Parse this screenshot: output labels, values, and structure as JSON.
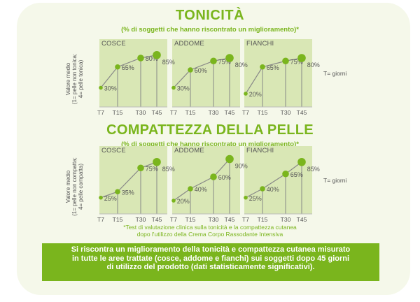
{
  "header": {
    "title1": "TONICITÀ",
    "subtitle1": "(% di soggetti che hanno riscontrato un miglioramento)*",
    "title2": "COMPATTEZZA DELLA PELLE",
    "subtitle2": "(% di soggetti che hanno riscontrato un miglioramento)*"
  },
  "ylabel1": [
    "Valore medio",
    "(1= pelle non tonica;",
    "4= pelle tonica)"
  ],
  "ylabel2": [
    "Valore medio",
    "(1= pelle non compatta;",
    "4= pelle compatta)"
  ],
  "time_note": "T= giorni",
  "footnote_lines": [
    "*Test di valutazione clinica sulla tonicità e la compattezza cutanea",
    "dopo l'utilizzo della Crema Corpo Rassodante Intensiva"
  ],
  "banner_lines": [
    "Si riscontra un miglioramento della tonicità e compattezza cutanea misurato",
    "in tutte le aree trattate (cosce, addome e fianchi) sui soggetti dopo 45 giorni",
    "di utilizzo del prodotto (dati statisticamente significativi)."
  ],
  "colors": {
    "accent": "#7ab51d",
    "panel": "#d9e7b5",
    "line": "#888888"
  },
  "chart_data": [
    {
      "type": "line",
      "title": "COSCE",
      "x": [
        "T7",
        "T15",
        "T30",
        "T45"
      ],
      "values": [
        30,
        65,
        80,
        85
      ],
      "labels": [
        "30%",
        "65%",
        "80%",
        "85%"
      ]
    },
    {
      "type": "line",
      "title": "ADDOME",
      "x": [
        "T7",
        "T15",
        "T30",
        "T45"
      ],
      "values": [
        30,
        60,
        75,
        80
      ],
      "labels": [
        "30%",
        "60%",
        "75%",
        "80%"
      ]
    },
    {
      "type": "line",
      "title": "FIANCHI",
      "x": [
        "T7",
        "T15",
        "T30",
        "T45"
      ],
      "values": [
        20,
        65,
        75,
        80
      ],
      "labels": [
        "20%",
        "65%",
        "75%",
        "80%"
      ]
    },
    {
      "type": "line",
      "title": "COSCE",
      "x": [
        "T7",
        "T15",
        "T30",
        "T45"
      ],
      "values": [
        25,
        35,
        75,
        85
      ],
      "labels": [
        "25%",
        "35%",
        "75%",
        "85%"
      ]
    },
    {
      "type": "line",
      "title": "ADDOME",
      "x": [
        "T7",
        "T15",
        "T30",
        "T45"
      ],
      "values": [
        20,
        40,
        60,
        90
      ],
      "labels": [
        "20%",
        "40%",
        "60%",
        "90%"
      ]
    },
    {
      "type": "line",
      "title": "FIANCHI",
      "x": [
        "T7",
        "T15",
        "T30",
        "T45"
      ],
      "values": [
        25,
        40,
        65,
        85
      ],
      "labels": [
        "25%",
        "40%",
        "65%",
        "85%"
      ]
    }
  ]
}
